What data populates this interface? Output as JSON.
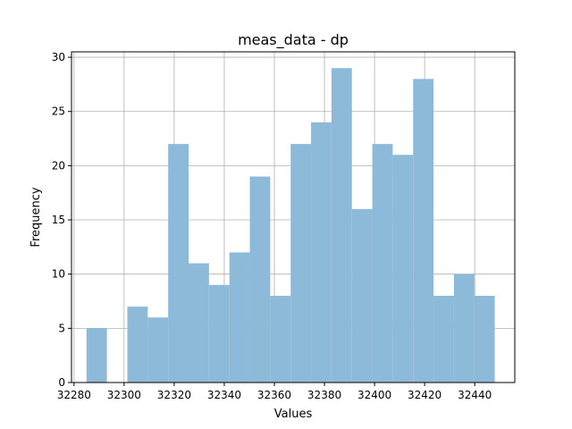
{
  "chart_data": {
    "type": "bar",
    "title": "meas_data - dp",
    "xlabel": "Values",
    "ylabel": "Frequency",
    "xlim": [
      32279,
      32456
    ],
    "ylim": [
      0,
      30.5
    ],
    "xticks": [
      32280,
      32300,
      32320,
      32340,
      32360,
      32380,
      32400,
      32420,
      32440
    ],
    "yticks": [
      0,
      5,
      10,
      15,
      20,
      25,
      30
    ],
    "grid": true,
    "bar_color": "#8ebad9",
    "bin_edges": [
      32285,
      32293.15,
      32301.3,
      32309.45,
      32317.6,
      32325.75,
      32333.9,
      32342.05,
      32350.2,
      32358.35,
      32366.5,
      32374.65,
      32382.8,
      32390.95,
      32399.1,
      32407.25,
      32415.4,
      32423.55,
      32431.7,
      32439.85,
      32448
    ],
    "counts": [
      5,
      0,
      7,
      6,
      22,
      11,
      9,
      12,
      19,
      8,
      22,
      24,
      29,
      16,
      22,
      21,
      28,
      8,
      10,
      8
    ]
  }
}
